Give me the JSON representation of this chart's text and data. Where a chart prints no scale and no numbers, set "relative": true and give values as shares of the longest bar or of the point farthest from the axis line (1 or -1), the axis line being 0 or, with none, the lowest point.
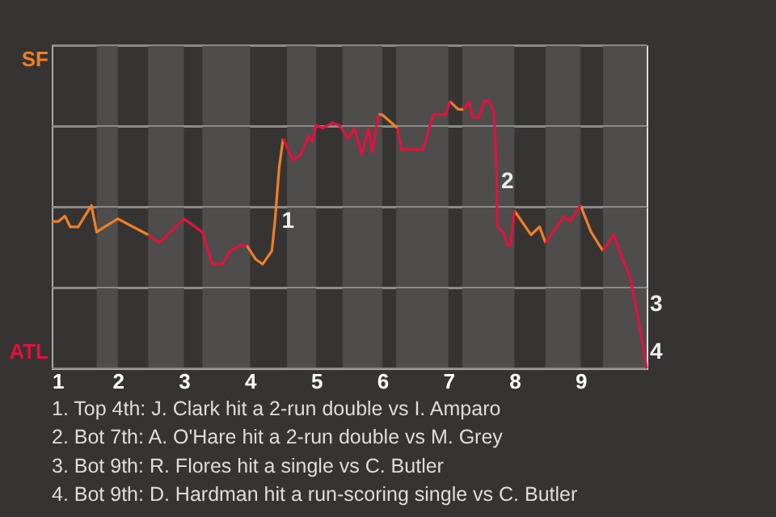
{
  "chart_data": {
    "type": "line",
    "relative": true,
    "x": [
      1.0,
      1.1,
      1.2,
      1.28,
      1.4,
      1.6,
      1.68,
      1.8,
      2.0,
      2.46,
      2.63,
      3.0,
      3.28,
      3.43,
      3.58,
      3.7,
      3.85,
      3.95,
      4.08,
      4.19,
      4.33,
      4.38,
      4.44,
      4.5,
      4.65,
      4.77,
      4.88,
      4.94,
      5.0,
      5.1,
      5.25,
      5.35,
      5.48,
      5.58,
      5.69,
      5.79,
      5.85,
      5.94,
      6.0,
      6.23,
      6.29,
      6.62,
      6.77,
      6.96,
      7.02,
      7.15,
      7.23,
      7.31,
      7.37,
      7.46,
      7.54,
      7.62,
      7.69,
      7.73,
      7.74,
      7.83,
      7.9,
      7.94,
      8.0,
      8.25,
      8.38,
      8.47,
      8.75,
      8.84,
      9.0,
      9.16,
      9.34,
      9.5,
      9.59,
      9.75,
      9.84,
      10.0
    ],
    "series": [
      {
        "color": "#f07f28",
        "values": [
          0.55,
          0.55,
          0.57,
          0.53,
          0.53,
          0.61,
          0.51,
          0.53,
          0.56,
          0.5,
          null,
          null,
          null,
          null,
          null,
          null,
          null,
          0.46,
          0.41,
          0.39,
          0.44,
          0.56,
          0.75,
          0.86,
          null,
          null,
          null,
          null,
          null,
          null,
          null,
          null,
          null,
          null,
          null,
          null,
          null,
          0.95,
          0.95,
          0.9,
          null,
          null,
          null,
          null,
          1,
          0.97,
          0.97,
          null,
          null,
          null,
          null,
          null,
          null,
          null,
          null,
          null,
          null,
          null,
          0.59,
          0.5,
          0.53,
          0.47,
          null,
          null,
          0.61,
          0.51,
          0.44,
          null,
          null,
          null,
          null,
          null
        ]
      },
      {
        "color": "#e2123d",
        "values": [
          null,
          null,
          null,
          null,
          null,
          null,
          null,
          null,
          null,
          0.5,
          0.47,
          0.56,
          0.51,
          0.39,
          0.39,
          0.44,
          0.46,
          0.46,
          null,
          null,
          null,
          null,
          null,
          0.86,
          0.78,
          0.8,
          0.87,
          0.85,
          0.91,
          0.9,
          0.92,
          0.91,
          0.86,
          0.9,
          0.8,
          0.9,
          0.81,
          0.95,
          null,
          0.9,
          0.82,
          0.82,
          0.95,
          0.95,
          1,
          null,
          0.97,
          1,
          0.94,
          0.94,
          1,
          1,
          0.96,
          0.73,
          0.53,
          0.51,
          0.46,
          0.46,
          0.59,
          null,
          null,
          0.47,
          0.57,
          0.55,
          0.61,
          null,
          0.44,
          0.5,
          0.44,
          0.34,
          0.23,
          0
        ]
      }
    ],
    "xlim": [
      1,
      10
    ],
    "xticks": [
      1,
      2,
      3,
      4,
      5,
      6,
      7,
      8,
      9
    ],
    "grid": true,
    "bands": [
      {
        "axis": "x",
        "from": 1.68,
        "to": 2.0,
        "color": "#4e4d4b"
      },
      {
        "axis": "x",
        "from": 2.46,
        "to": 3.0,
        "color": "#4e4d4b"
      },
      {
        "axis": "x",
        "from": 3.28,
        "to": 4.0,
        "color": "#4e4d4b"
      },
      {
        "axis": "x",
        "from": 4.56,
        "to": 5.0,
        "color": "#4e4d4b"
      },
      {
        "axis": "x",
        "from": 5.4,
        "to": 6.0,
        "color": "#4e4d4b"
      },
      {
        "axis": "x",
        "from": 6.21,
        "to": 7.0,
        "color": "#4e4d4b"
      },
      {
        "axis": "x",
        "from": 7.21,
        "to": 8.0,
        "color": "#4e4d4b"
      },
      {
        "axis": "x",
        "from": 8.47,
        "to": 9.0,
        "color": "#4e4d4b"
      },
      {
        "axis": "x",
        "from": 9.34,
        "to": 10,
        "color": "#4e4d4b"
      }
    ],
    "annotations": [
      {
        "text": "1",
        "x": 4.43,
        "y": 0.55
      },
      {
        "text": "2",
        "x": 7.75,
        "y": 0.7
      },
      {
        "text": "3",
        "x": 10,
        "y": 0.24
      },
      {
        "text": "4",
        "x": 10,
        "y": 0.06
      },
      "SF",
      "ATL",
      "1. Top 4th: J. Clark hit a 2-run double vs I. Amparo",
      "2. Bot 7th: A. O'Hare hit a 2-run double vs M. Grey",
      "3. Bot 9th: R. Flores hit a single vs C. Butler",
      "4. Bot 9th: D. Hardman hit a run-scoring single vs C. Butler"
    ]
  }
}
